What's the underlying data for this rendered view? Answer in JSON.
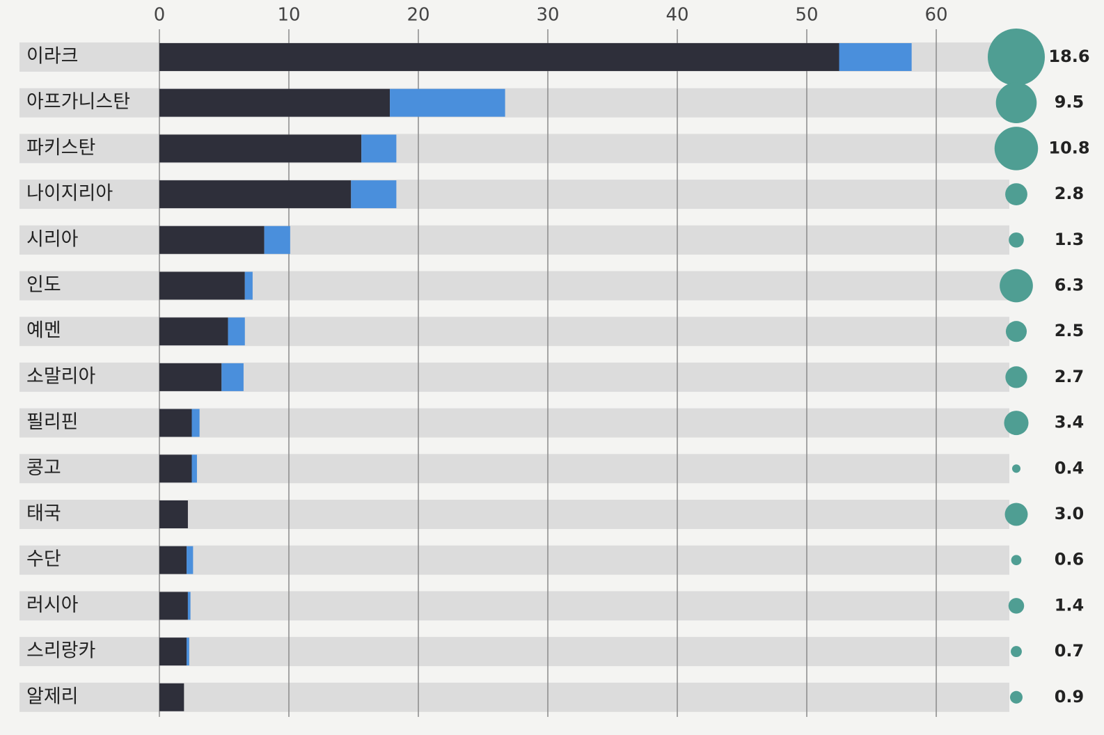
{
  "chart_data": [
    {
      "type": "bar",
      "orientation": "horizontal",
      "stacked": true,
      "categories": [
        "이라크",
        "아프가니스탄",
        "파키스탄",
        "나이지리아",
        "시리아",
        "인도",
        "예멘",
        "소말리아",
        "필리핀",
        "콩고",
        "태국",
        "수단",
        "러시아",
        "스리랑카",
        "알제리"
      ],
      "series": [
        {
          "color": "#2e2f3a",
          "values": [
            52.5,
            17.8,
            15.6,
            14.8,
            8.1,
            6.6,
            5.3,
            4.8,
            2.5,
            2.5,
            2.2,
            2.1,
            2.2,
            2.1,
            1.9
          ]
        },
        {
          "color": "#4a8fdc",
          "values": [
            5.6,
            8.9,
            2.7,
            3.5,
            2.0,
            0.6,
            1.3,
            1.7,
            0.6,
            0.4,
            0,
            0.5,
            0.2,
            0.2,
            0
          ]
        }
      ],
      "xlim": [
        0,
        66
      ],
      "xticks": [
        0,
        10,
        20,
        30,
        40,
        50,
        60
      ],
      "grid": true
    },
    {
      "type": "bubble",
      "color": "#4f9e93",
      "values": [
        18.6,
        9.5,
        10.8,
        2.8,
        1.3,
        6.3,
        2.5,
        2.7,
        3.4,
        0.4,
        3.0,
        0.6,
        1.4,
        0.7,
        0.9
      ],
      "value_labels": [
        "18.6",
        "9.5",
        "10.8",
        "2.8",
        "1.3",
        "6.3",
        "2.5",
        "2.7",
        "3.4",
        "0.4",
        "3.0",
        "0.6",
        "1.4",
        "0.7",
        "0.9"
      ]
    }
  ]
}
